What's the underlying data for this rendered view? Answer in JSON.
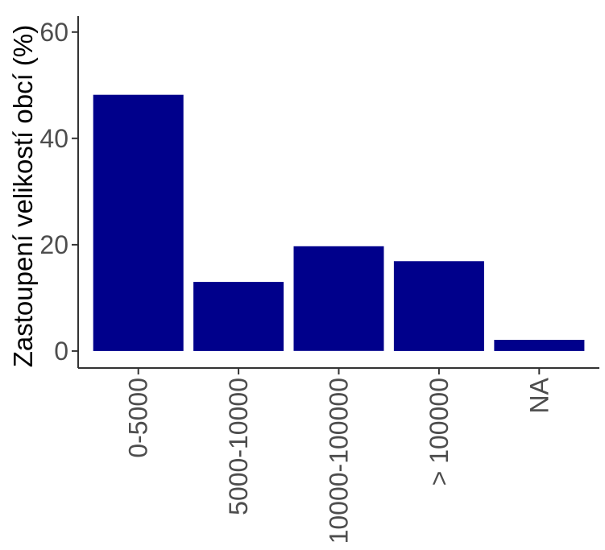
{
  "chart_data": {
    "type": "bar",
    "categories": [
      "0-5000",
      "5000-10000",
      "10000-100000",
      "> 100000",
      "NA"
    ],
    "values": [
      48.2,
      13.0,
      19.7,
      16.9,
      2.1
    ],
    "title": "",
    "xlabel": "",
    "ylabel": "Zastoupení velikostí obcí (%)",
    "ylim": [
      -3.2,
      63
    ],
    "yticks": [
      0,
      20,
      40,
      60
    ],
    "grid": false,
    "legend": "none",
    "bar_color": "#00008b"
  }
}
